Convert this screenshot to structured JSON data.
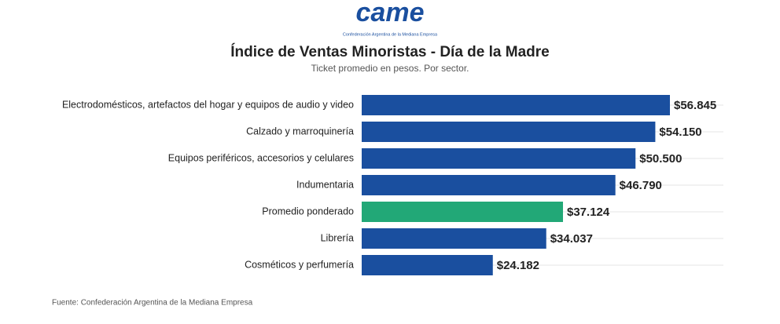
{
  "logo": {
    "text": "came",
    "caption": "Confederación Argentina de la Mediana Empresa"
  },
  "chart_data": {
    "type": "hbar",
    "title": "Índice de Ventas Minoristas - Día de la Madre",
    "subtitle": "Ticket promedio en pesos. Por sector.",
    "source": "Fuente: Confederación Argentina de la Mediana Empresa",
    "categories": [
      "Electrodomésticos, artefactos del hogar y equipos de audio y video",
      "Calzado y marroquinería",
      "Equipos periféricos, accesorios y celulares",
      "Indumentaria",
      "Promedio ponderado",
      "Librería",
      "Cosméticos y perfumería"
    ],
    "values": [
      56845,
      54150,
      50500,
      46790,
      37124,
      34037,
      24182
    ],
    "value_labels": [
      "$56.845",
      "$54.150",
      "$50.500",
      "$46.790",
      "$37.124",
      "$34.037",
      "$24.182"
    ],
    "colors": [
      "#1a4f9f",
      "#1a4f9f",
      "#1a4f9f",
      "#1a4f9f",
      "#22a877",
      "#1a4f9f",
      "#1a4f9f"
    ]
  }
}
